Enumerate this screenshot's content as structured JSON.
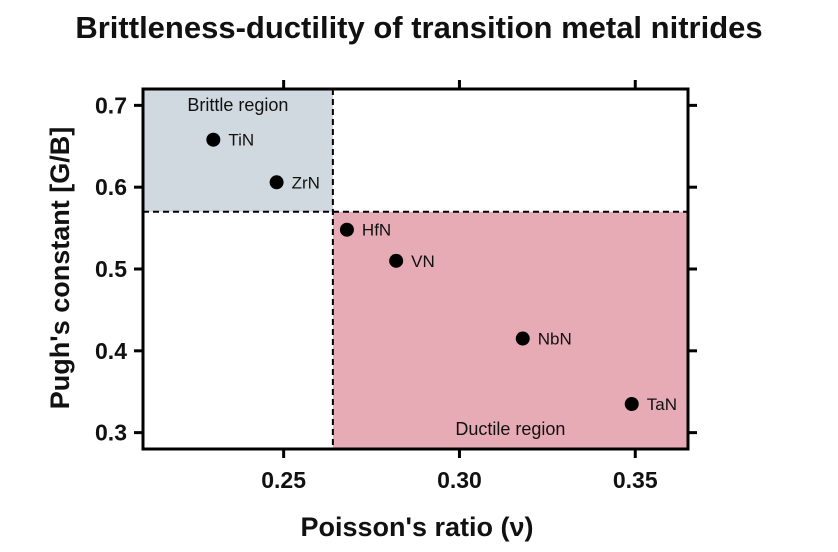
{
  "chart_data": {
    "type": "scatter",
    "title": "Brittleness-ductility of transition metal nitrides",
    "xlabel": "Poisson's ratio (ν)",
    "ylabel": "Pugh's constant [G/B]",
    "xlim": [
      0.21,
      0.365
    ],
    "ylim": [
      0.28,
      0.72
    ],
    "xticks": [
      0.25,
      0.3,
      0.35
    ],
    "xtick_labels": [
      "0.25",
      "0.30",
      "0.35"
    ],
    "yticks": [
      0.3,
      0.4,
      0.5,
      0.6,
      0.7
    ],
    "ytick_labels": [
      "0.3",
      "0.4",
      "0.5",
      "0.6",
      "0.7"
    ],
    "grid": false,
    "points": [
      {
        "label": "TiN",
        "x": 0.23,
        "y": 0.658
      },
      {
        "label": "ZrN",
        "x": 0.248,
        "y": 0.606
      },
      {
        "label": "HfN",
        "x": 0.268,
        "y": 0.548
      },
      {
        "label": "VN",
        "x": 0.282,
        "y": 0.51
      },
      {
        "label": "NbN",
        "x": 0.318,
        "y": 0.415
      },
      {
        "label": "TaN",
        "x": 0.349,
        "y": 0.335
      }
    ],
    "thresholds": {
      "x": 0.264,
      "y": 0.57
    },
    "regions": [
      {
        "label": "Brittle region",
        "x_range": [
          0.21,
          0.264
        ],
        "y_range": [
          0.57,
          0.72
        ],
        "color": "#d0d9df"
      },
      {
        "label": "Ductile region",
        "x_range": [
          0.264,
          0.365
        ],
        "y_range": [
          0.28,
          0.57
        ],
        "color": "#e6abb5"
      }
    ],
    "marker_color": "#000000"
  }
}
